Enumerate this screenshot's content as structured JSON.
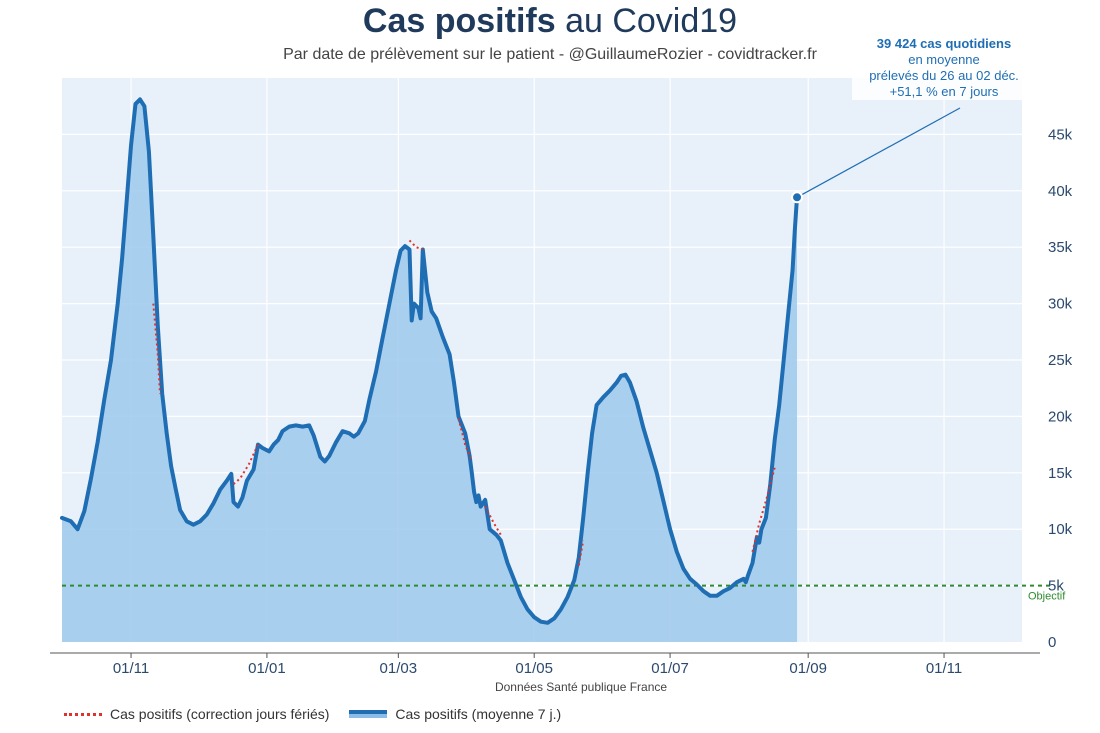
{
  "title_bold": "Cas positifs",
  "title_rest": " au Covid19",
  "subtitle": "Par date de prélèvement sur le patient - @GuillaumeRozier - covidtracker.fr",
  "annotation": {
    "line1": "39 424 cas quotidiens",
    "line2": "en moyenne",
    "line3": "prélevés du 26 au 02 déc.",
    "line4": "+51,1 % en 7 jours"
  },
  "source": "Données Santé publique France",
  "legend": {
    "corrected": "Cas positifs (correction jours fériés)",
    "average": "Cas positifs (moyenne 7 j.)"
  },
  "colors": {
    "line": "#1f6eb4",
    "area": "#9ec9ec",
    "corrected": "#e0312a",
    "objective": "#2e8b2e",
    "grid": "#ffffff",
    "plot_bg": "#e8f0fa"
  },
  "chart_data": {
    "type": "area",
    "title": "Cas positifs au Covid19",
    "xlabel": "",
    "ylabel": "",
    "x_range": [
      0,
      431
    ],
    "ylim": [
      0,
      50000
    ],
    "x_ticks": [
      {
        "x": 31,
        "label": "01/11"
      },
      {
        "x": 92,
        "label": "01/01"
      },
      {
        "x": 151,
        "label": "01/03"
      },
      {
        "x": 212,
        "label": "01/05"
      },
      {
        "x": 273,
        "label": "01/07"
      },
      {
        "x": 335,
        "label": "01/09"
      },
      {
        "x": 396,
        "label": "01/11"
      }
    ],
    "y_ticks": [
      {
        "y": 0,
        "label": "0"
      },
      {
        "y": 5000,
        "label": "5k"
      },
      {
        "y": 10000,
        "label": "10k"
      },
      {
        "y": 15000,
        "label": "15k"
      },
      {
        "y": 20000,
        "label": "20k"
      },
      {
        "y": 25000,
        "label": "25k"
      },
      {
        "y": 30000,
        "label": "30k"
      },
      {
        "y": 35000,
        "label": "35k"
      },
      {
        "y": 40000,
        "label": "40k"
      },
      {
        "y": 45000,
        "label": "45k"
      }
    ],
    "objective": {
      "value": 5000,
      "label": "Objectif"
    },
    "series": [
      {
        "name": "Cas positifs (moyenne 7 j.)",
        "points": [
          [
            0,
            11000
          ],
          [
            4,
            10700
          ],
          [
            7,
            10000
          ],
          [
            10,
            11600
          ],
          [
            13,
            14500
          ],
          [
            16,
            17700
          ],
          [
            19,
            21500
          ],
          [
            22,
            25000
          ],
          [
            25,
            30000
          ],
          [
            27,
            34000
          ],
          [
            29,
            39000
          ],
          [
            31,
            44000
          ],
          [
            33,
            47700
          ],
          [
            35,
            48100
          ],
          [
            37,
            47500
          ],
          [
            39,
            43500
          ],
          [
            41,
            36000
          ],
          [
            43,
            28000
          ],
          [
            45,
            22000
          ],
          [
            47,
            18500
          ],
          [
            49,
            15600
          ],
          [
            51,
            13600
          ],
          [
            53,
            11700
          ],
          [
            56,
            10700
          ],
          [
            59,
            10400
          ],
          [
            62,
            10700
          ],
          [
            65,
            11300
          ],
          [
            68,
            12300
          ],
          [
            71,
            13500
          ],
          [
            74,
            14300
          ],
          [
            76,
            14900
          ],
          [
            77,
            12400
          ],
          [
            79,
            12000
          ],
          [
            81,
            12800
          ],
          [
            83,
            14300
          ],
          [
            86,
            15300
          ],
          [
            88,
            17500
          ],
          [
            90,
            17200
          ],
          [
            93,
            16900
          ],
          [
            95,
            17500
          ],
          [
            97,
            17900
          ],
          [
            99,
            18700
          ],
          [
            102,
            19100
          ],
          [
            105,
            19200
          ],
          [
            108,
            19100
          ],
          [
            111,
            19200
          ],
          [
            113,
            18300
          ],
          [
            116,
            16400
          ],
          [
            118,
            16000
          ],
          [
            120,
            16500
          ],
          [
            123,
            17700
          ],
          [
            126,
            18700
          ],
          [
            129,
            18500
          ],
          [
            131,
            18200
          ],
          [
            133,
            18500
          ],
          [
            136,
            19600
          ],
          [
            138,
            21500
          ],
          [
            141,
            24000
          ],
          [
            144,
            27000
          ],
          [
            147,
            30000
          ],
          [
            150,
            33000
          ],
          [
            152,
            34700
          ],
          [
            154,
            35100
          ],
          [
            156,
            34800
          ],
          [
            157,
            28500
          ],
          [
            158,
            30000
          ],
          [
            160,
            29600
          ],
          [
            161,
            28700
          ],
          [
            162,
            34800
          ],
          [
            164,
            31000
          ],
          [
            166,
            29300
          ],
          [
            168,
            28700
          ],
          [
            171,
            27000
          ],
          [
            174,
            25500
          ],
          [
            176,
            23000
          ],
          [
            178,
            20000
          ],
          [
            181,
            18500
          ],
          [
            183,
            16500
          ],
          [
            184,
            15000
          ],
          [
            185,
            13300
          ],
          [
            186,
            12400
          ],
          [
            187,
            13000
          ],
          [
            188,
            12000
          ],
          [
            190,
            12600
          ],
          [
            192,
            10000
          ],
          [
            195,
            9500
          ],
          [
            197,
            9000
          ],
          [
            200,
            7000
          ],
          [
            203,
            5500
          ],
          [
            206,
            4000
          ],
          [
            209,
            2900
          ],
          [
            212,
            2200
          ],
          [
            215,
            1800
          ],
          [
            218,
            1700
          ],
          [
            221,
            2100
          ],
          [
            224,
            2900
          ],
          [
            227,
            4000
          ],
          [
            230,
            5500
          ],
          [
            232,
            7500
          ],
          [
            234,
            11000
          ],
          [
            236,
            15000
          ],
          [
            238,
            18500
          ],
          [
            240,
            21000
          ],
          [
            243,
            21700
          ],
          [
            246,
            22300
          ],
          [
            249,
            23000
          ],
          [
            251,
            23600
          ],
          [
            253,
            23700
          ],
          [
            255,
            23000
          ],
          [
            258,
            21300
          ],
          [
            261,
            19000
          ],
          [
            264,
            17000
          ],
          [
            267,
            15000
          ],
          [
            270,
            12500
          ],
          [
            273,
            10000
          ],
          [
            276,
            8000
          ],
          [
            279,
            6500
          ],
          [
            282,
            5600
          ],
          [
            285,
            5100
          ],
          [
            288,
            4500
          ],
          [
            291,
            4100
          ],
          [
            294,
            4100
          ],
          [
            297,
            4500
          ],
          [
            300,
            4800
          ],
          [
            303,
            5300
          ],
          [
            306,
            5600
          ],
          [
            307,
            5300
          ],
          [
            308,
            5900
          ],
          [
            310,
            7000
          ],
          [
            312,
            9300
          ],
          [
            313,
            8800
          ],
          [
            314,
            10000
          ],
          [
            316,
            11000
          ],
          [
            318,
            14000
          ],
          [
            320,
            18000
          ],
          [
            322,
            21000
          ],
          [
            324,
            25000
          ],
          [
            326,
            29000
          ],
          [
            328,
            33000
          ],
          [
            329,
            36500
          ],
          [
            330,
            39424
          ]
        ]
      },
      {
        "name": "Cas positifs (correction jours fériés)",
        "segments": [
          [
            [
              41,
              30000
            ],
            [
              43,
              25500
            ],
            [
              44,
              22000
            ]
          ],
          [
            [
              77,
              14000
            ],
            [
              80,
              14500
            ],
            [
              84,
              15800
            ],
            [
              88,
              17500
            ]
          ],
          [
            [
              156,
              35600
            ],
            [
              159,
              35000
            ],
            [
              162,
              34800
            ]
          ],
          [
            [
              178,
              19800
            ],
            [
              181,
              17500
            ],
            [
              184,
              16000
            ]
          ],
          [
            [
              190,
              12000
            ],
            [
              194,
              10500
            ],
            [
              197,
              9500
            ]
          ],
          [
            [
              232,
              6800
            ],
            [
              234,
              9000
            ]
          ],
          [
            [
              310,
              8000
            ],
            [
              313,
              10500
            ],
            [
              316,
              12500
            ],
            [
              320,
              15500
            ]
          ]
        ]
      }
    ]
  }
}
